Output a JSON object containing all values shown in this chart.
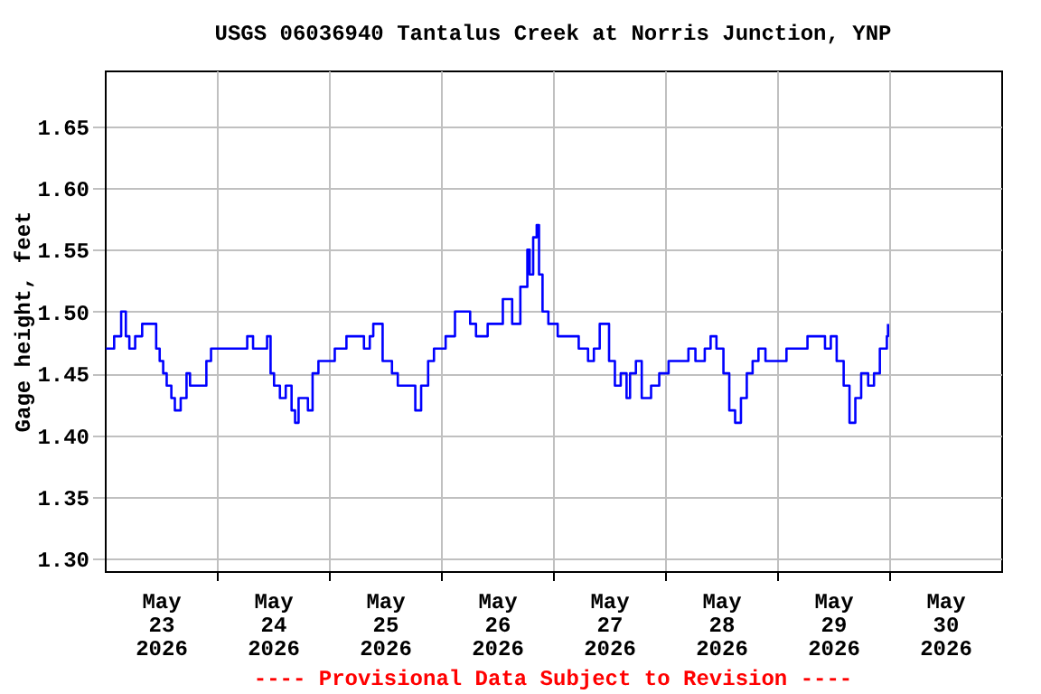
{
  "chart_data": {
    "type": "step",
    "title": "USGS 06036940 Tantalus Creek at Norris Junction, YNP",
    "ylabel": "Gage height, feet",
    "annotations": [
      "---- Provisional Data Subject to Revision ----"
    ],
    "xlim": [
      "2026-05-23T00:00",
      "2026-05-31T00:00"
    ],
    "xticks": [
      {
        "value": "2026-05-23T12:00",
        "label": "May\n23\n2026"
      },
      {
        "value": "2026-05-24T00:00",
        "label": null
      },
      {
        "value": "2026-05-24T12:00",
        "label": "May\n24\n2026"
      },
      {
        "value": "2026-05-25T00:00",
        "label": null
      },
      {
        "value": "2026-05-25T12:00",
        "label": "May\n25\n2026"
      },
      {
        "value": "2026-05-26T00:00",
        "label": null
      },
      {
        "value": "2026-05-26T12:00",
        "label": "May\n26\n2026"
      },
      {
        "value": "2026-05-27T00:00",
        "label": null
      },
      {
        "value": "2026-05-27T12:00",
        "label": "May\n27\n2026"
      },
      {
        "value": "2026-05-28T00:00",
        "label": null
      },
      {
        "value": "2026-05-28T12:00",
        "label": "May\n28\n2026"
      },
      {
        "value": "2026-05-29T00:00",
        "label": null
      },
      {
        "value": "2026-05-29T12:00",
        "label": "May\n29\n2026"
      },
      {
        "value": "2026-05-30T00:00",
        "label": null
      },
      {
        "value": "2026-05-30T12:00",
        "label": "May\n30\n2026"
      }
    ],
    "ylim": [
      1.29,
      1.695
    ],
    "yticks": [
      {
        "value": 1.3,
        "label": "1.30"
      },
      {
        "value": 1.35,
        "label": "1.35"
      },
      {
        "value": 1.4,
        "label": "1.40"
      },
      {
        "value": 1.45,
        "label": "1.45"
      },
      {
        "value": 1.5,
        "label": "1.50"
      },
      {
        "value": 1.55,
        "label": "1.55"
      },
      {
        "value": 1.6,
        "label": "1.60"
      },
      {
        "value": 1.65,
        "label": "1.65"
      }
    ],
    "grid": true,
    "marker": "none",
    "line_style": "solid",
    "series": [
      {
        "color": "#0000ff",
        "x": [
          "2026-05-23T00:15",
          "2026-05-23T02:00",
          "2026-05-23T03:30",
          "2026-05-23T04:30",
          "2026-05-23T05:15",
          "2026-05-23T06:30",
          "2026-05-23T08:00",
          "2026-05-23T10:30",
          "2026-05-23T11:00",
          "2026-05-23T11:45",
          "2026-05-23T12:30",
          "2026-05-23T13:15",
          "2026-05-23T14:15",
          "2026-05-23T15:00",
          "2026-05-23T16:15",
          "2026-05-23T17:30",
          "2026-05-23T18:15",
          "2026-05-23T19:30",
          "2026-05-23T21:00",
          "2026-05-23T21:45",
          "2026-05-23T22:45",
          "2026-05-24T00:45",
          "2026-05-24T04:30",
          "2026-05-24T06:30",
          "2026-05-24T07:45",
          "2026-05-24T09:45",
          "2026-05-24T10:45",
          "2026-05-24T11:30",
          "2026-05-24T12:15",
          "2026-05-24T13:30",
          "2026-05-24T14:45",
          "2026-05-24T16:00",
          "2026-05-24T16:45",
          "2026-05-24T17:30",
          "2026-05-24T19:30",
          "2026-05-24T20:30",
          "2026-05-24T21:45",
          "2026-05-24T23:45",
          "2026-05-25T01:15",
          "2026-05-25T03:45",
          "2026-05-25T07:30",
          "2026-05-25T08:45",
          "2026-05-25T09:30",
          "2026-05-25T11:30",
          "2026-05-25T13:30",
          "2026-05-25T14:45",
          "2026-05-25T16:30",
          "2026-05-25T18:30",
          "2026-05-25T19:45",
          "2026-05-25T21:15",
          "2026-05-25T22:30",
          "2026-05-25T23:45",
          "2026-05-26T01:00",
          "2026-05-26T03:00",
          "2026-05-26T06:15",
          "2026-05-26T07:30",
          "2026-05-26T10:00",
          "2026-05-26T12:45",
          "2026-05-26T13:15",
          "2026-05-26T15:15",
          "2026-05-26T17:00",
          "2026-05-26T18:30",
          "2026-05-26T19:00",
          "2026-05-26T19:45",
          "2026-05-26T20:30",
          "2026-05-26T21:00",
          "2026-05-26T21:45",
          "2026-05-26T23:00",
          "2026-05-27T01:00",
          "2026-05-27T03:30",
          "2026-05-27T05:30",
          "2026-05-27T07:30",
          "2026-05-27T08:45",
          "2026-05-27T10:00",
          "2026-05-27T12:00",
          "2026-05-27T13:15",
          "2026-05-27T14:30",
          "2026-05-27T15:45",
          "2026-05-27T16:30",
          "2026-05-27T17:45",
          "2026-05-27T19:00",
          "2026-05-27T21:00",
          "2026-05-27T22:45",
          "2026-05-28T00:45",
          "2026-05-28T03:15",
          "2026-05-28T05:00",
          "2026-05-28T06:30",
          "2026-05-28T08:30",
          "2026-05-28T09:45",
          "2026-05-28T11:00",
          "2026-05-28T12:30",
          "2026-05-28T13:45",
          "2026-05-28T15:00",
          "2026-05-28T16:15",
          "2026-05-28T17:30",
          "2026-05-28T18:45",
          "2026-05-28T20:00",
          "2026-05-28T21:30",
          "2026-05-29T00:45",
          "2026-05-29T02:00",
          "2026-05-29T04:30",
          "2026-05-29T06:30",
          "2026-05-29T08:30",
          "2026-05-29T10:15",
          "2026-05-29T11:30",
          "2026-05-29T12:45",
          "2026-05-29T14:15",
          "2026-05-29T15:30",
          "2026-05-29T16:45",
          "2026-05-29T18:00",
          "2026-05-29T19:30",
          "2026-05-29T20:45",
          "2026-05-29T22:00",
          "2026-05-29T23:30",
          "2026-05-29T23:45"
        ],
        "values": [
          1.47,
          1.48,
          1.5,
          1.48,
          1.47,
          1.48,
          1.49,
          1.49,
          1.47,
          1.46,
          1.45,
          1.44,
          1.43,
          1.42,
          1.43,
          1.45,
          1.44,
          1.44,
          1.44,
          1.46,
          1.47,
          1.47,
          1.47,
          1.48,
          1.47,
          1.47,
          1.48,
          1.45,
          1.44,
          1.43,
          1.44,
          1.42,
          1.41,
          1.43,
          1.42,
          1.45,
          1.46,
          1.46,
          1.47,
          1.48,
          1.47,
          1.48,
          1.49,
          1.46,
          1.45,
          1.44,
          1.44,
          1.42,
          1.44,
          1.46,
          1.47,
          1.47,
          1.48,
          1.5,
          1.49,
          1.48,
          1.49,
          1.49,
          1.51,
          1.49,
          1.52,
          1.55,
          1.53,
          1.56,
          1.57,
          1.53,
          1.5,
          1.49,
          1.48,
          1.48,
          1.47,
          1.46,
          1.47,
          1.49,
          1.46,
          1.44,
          1.45,
          1.43,
          1.45,
          1.46,
          1.43,
          1.44,
          1.45,
          1.46,
          1.46,
          1.47,
          1.46,
          1.47,
          1.48,
          1.47,
          1.45,
          1.42,
          1.41,
          1.43,
          1.45,
          1.46,
          1.47,
          1.46,
          1.46,
          1.47,
          1.47,
          1.48,
          1.48,
          1.47,
          1.48,
          1.46,
          1.44,
          1.41,
          1.43,
          1.45,
          1.44,
          1.45,
          1.47,
          1.48,
          1.49
        ]
      }
    ]
  }
}
